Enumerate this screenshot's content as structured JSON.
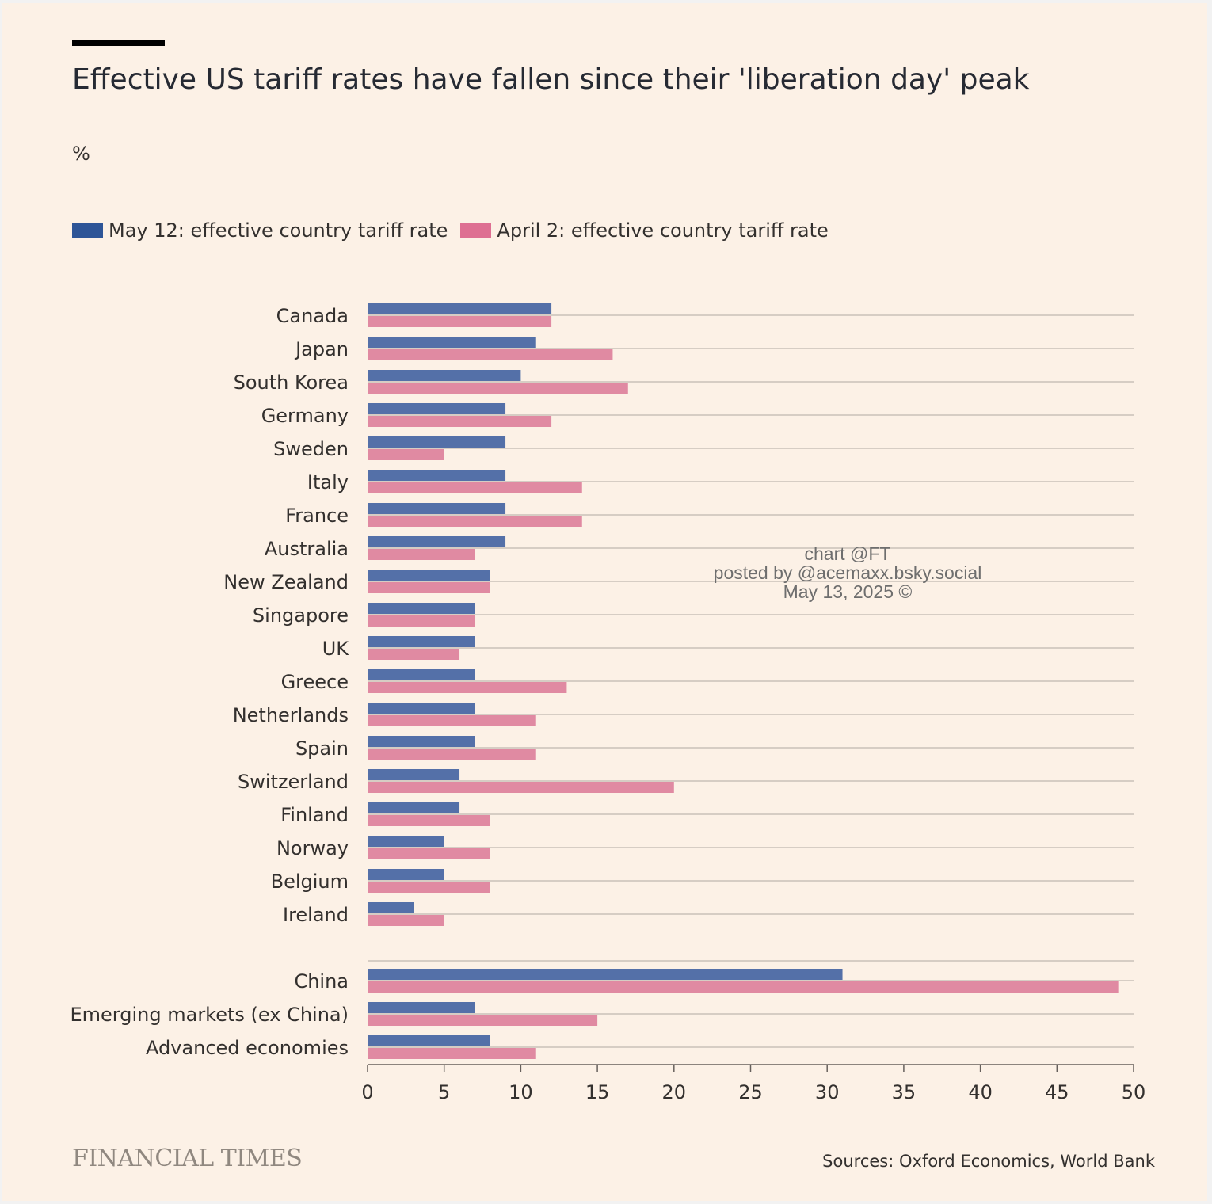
{
  "title": "Effective US tariff rates have fallen since their 'liberation day' peak",
  "unit_label": "%",
  "legend": [
    {
      "label": "May 12: effective country tariff rate",
      "color": "#2e5597"
    },
    {
      "label": "April 2: effective country tariff rate",
      "color": "#de6f92"
    }
  ],
  "colors": {
    "background": "#fcf1e6",
    "gridline": "#c9c1b8",
    "axis": "#66605c",
    "text": "#33302e"
  },
  "chart_data": {
    "type": "bar",
    "orientation": "horizontal",
    "xlim": [
      0,
      50
    ],
    "xticks": [
      0,
      5,
      10,
      15,
      20,
      25,
      30,
      35,
      40,
      45,
      50
    ],
    "grid": true,
    "legend_position": "top-left",
    "groups": [
      {
        "categories": [
          "Canada",
          "Japan",
          "South Korea",
          "Germany",
          "Sweden",
          "Italy",
          "France",
          "Australia",
          "New Zealand",
          "Singapore",
          "UK",
          "Greece",
          "Netherlands",
          "Spain",
          "Switzerland",
          "Finland",
          "Norway",
          "Belgium",
          "Ireland"
        ]
      },
      {
        "categories": [
          "China",
          "Emerging markets (ex China)",
          "Advanced economies"
        ]
      }
    ],
    "categories": [
      "Canada",
      "Japan",
      "South Korea",
      "Germany",
      "Sweden",
      "Italy",
      "France",
      "Australia",
      "New Zealand",
      "Singapore",
      "UK",
      "Greece",
      "Netherlands",
      "Spain",
      "Switzerland",
      "Finland",
      "Norway",
      "Belgium",
      "Ireland",
      "China",
      "Emerging markets (ex China)",
      "Advanced economies"
    ],
    "series": [
      {
        "name": "May 12: effective country tariff rate",
        "color": "#5470a8",
        "values": [
          12,
          11,
          10,
          9,
          9,
          9,
          9,
          9,
          8,
          7,
          7,
          7,
          7,
          7,
          6,
          6,
          5,
          5,
          3,
          31,
          7,
          8
        ]
      },
      {
        "name": "April 2: effective country tariff rate",
        "color": "#e08aa2",
        "values": [
          12,
          16,
          17,
          12,
          5,
          14,
          14,
          7,
          8,
          7,
          6,
          13,
          11,
          11,
          20,
          8,
          8,
          8,
          5,
          49,
          15,
          11
        ]
      }
    ]
  },
  "watermark": {
    "line1": "chart @FT",
    "line2": "posted by @acemaxx.bsky.social",
    "line3": "May 13, 2025 ©"
  },
  "footer": {
    "brand": "FINANCIAL TIMES",
    "source": "Sources: Oxford Economics, World Bank"
  }
}
